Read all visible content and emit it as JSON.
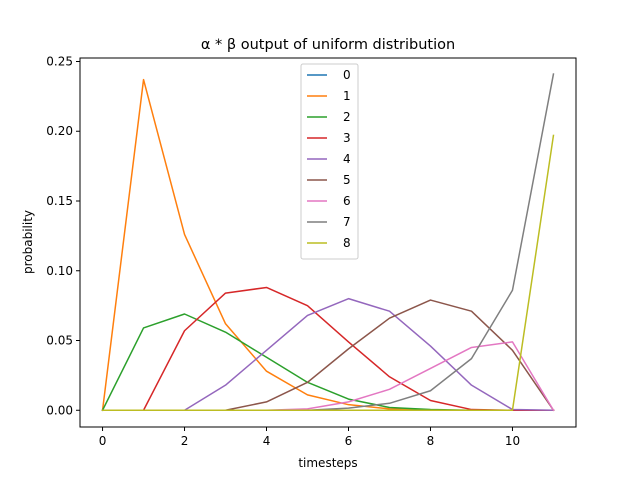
{
  "chart_data": {
    "type": "line",
    "title": "α * β output of uniform distribution",
    "xlabel": "timesteps",
    "ylabel": "probability",
    "xlim": [
      -0.55,
      11.55
    ],
    "ylim": [
      -0.012,
      0.2525
    ],
    "xticks": [
      0,
      2,
      4,
      6,
      8,
      10
    ],
    "xtick_labels": [
      "0",
      "2",
      "4",
      "6",
      "8",
      "10"
    ],
    "yticks": [
      0.0,
      0.05,
      0.1,
      0.15,
      0.2,
      0.25
    ],
    "ytick_labels": [
      "0.00",
      "0.05",
      "0.10",
      "0.15",
      "0.20",
      "0.25"
    ],
    "grid": false,
    "legend_position": "top-center",
    "x": [
      0,
      1,
      2,
      3,
      4,
      5,
      6,
      7,
      8,
      9,
      10,
      11
    ],
    "series": [
      {
        "name": "0",
        "color": "#1f77b4",
        "values": [
          0,
          0,
          0,
          0,
          0,
          0,
          0,
          0,
          0,
          0,
          0,
          0
        ]
      },
      {
        "name": "1",
        "color": "#ff7f0e",
        "values": [
          0,
          0.237,
          0.126,
          0.062,
          0.028,
          0.011,
          0.004,
          0.001,
          0.0,
          0,
          0,
          0
        ]
      },
      {
        "name": "2",
        "color": "#2ca02c",
        "values": [
          0,
          0.059,
          0.069,
          0.056,
          0.038,
          0.02,
          0.008,
          0.002,
          0.0005,
          0,
          0,
          0
        ]
      },
      {
        "name": "3",
        "color": "#d62728",
        "values": [
          0,
          0,
          0.057,
          0.084,
          0.088,
          0.075,
          0.049,
          0.024,
          0.007,
          0.0005,
          0,
          0
        ]
      },
      {
        "name": "4",
        "color": "#9467bd",
        "values": [
          0,
          0,
          0,
          0.018,
          0.043,
          0.068,
          0.08,
          0.071,
          0.046,
          0.018,
          0.0005,
          0
        ]
      },
      {
        "name": "5",
        "color": "#8c564b",
        "values": [
          0,
          0,
          0,
          0,
          0.006,
          0.02,
          0.044,
          0.066,
          0.079,
          0.071,
          0.043,
          0
        ]
      },
      {
        "name": "6",
        "color": "#e377c2",
        "values": [
          0,
          0,
          0,
          0,
          0,
          0.001,
          0.006,
          0.015,
          0.03,
          0.045,
          0.049,
          0
        ]
      },
      {
        "name": "7",
        "color": "#7f7f7f",
        "values": [
          0,
          0,
          0,
          0,
          0,
          0,
          0.0015,
          0.005,
          0.014,
          0.037,
          0.086,
          0.241
        ]
      },
      {
        "name": "8",
        "color": "#bcbd22",
        "values": [
          0,
          0,
          0,
          0,
          0,
          0,
          0,
          0,
          0,
          0,
          0,
          0.197
        ]
      }
    ]
  }
}
